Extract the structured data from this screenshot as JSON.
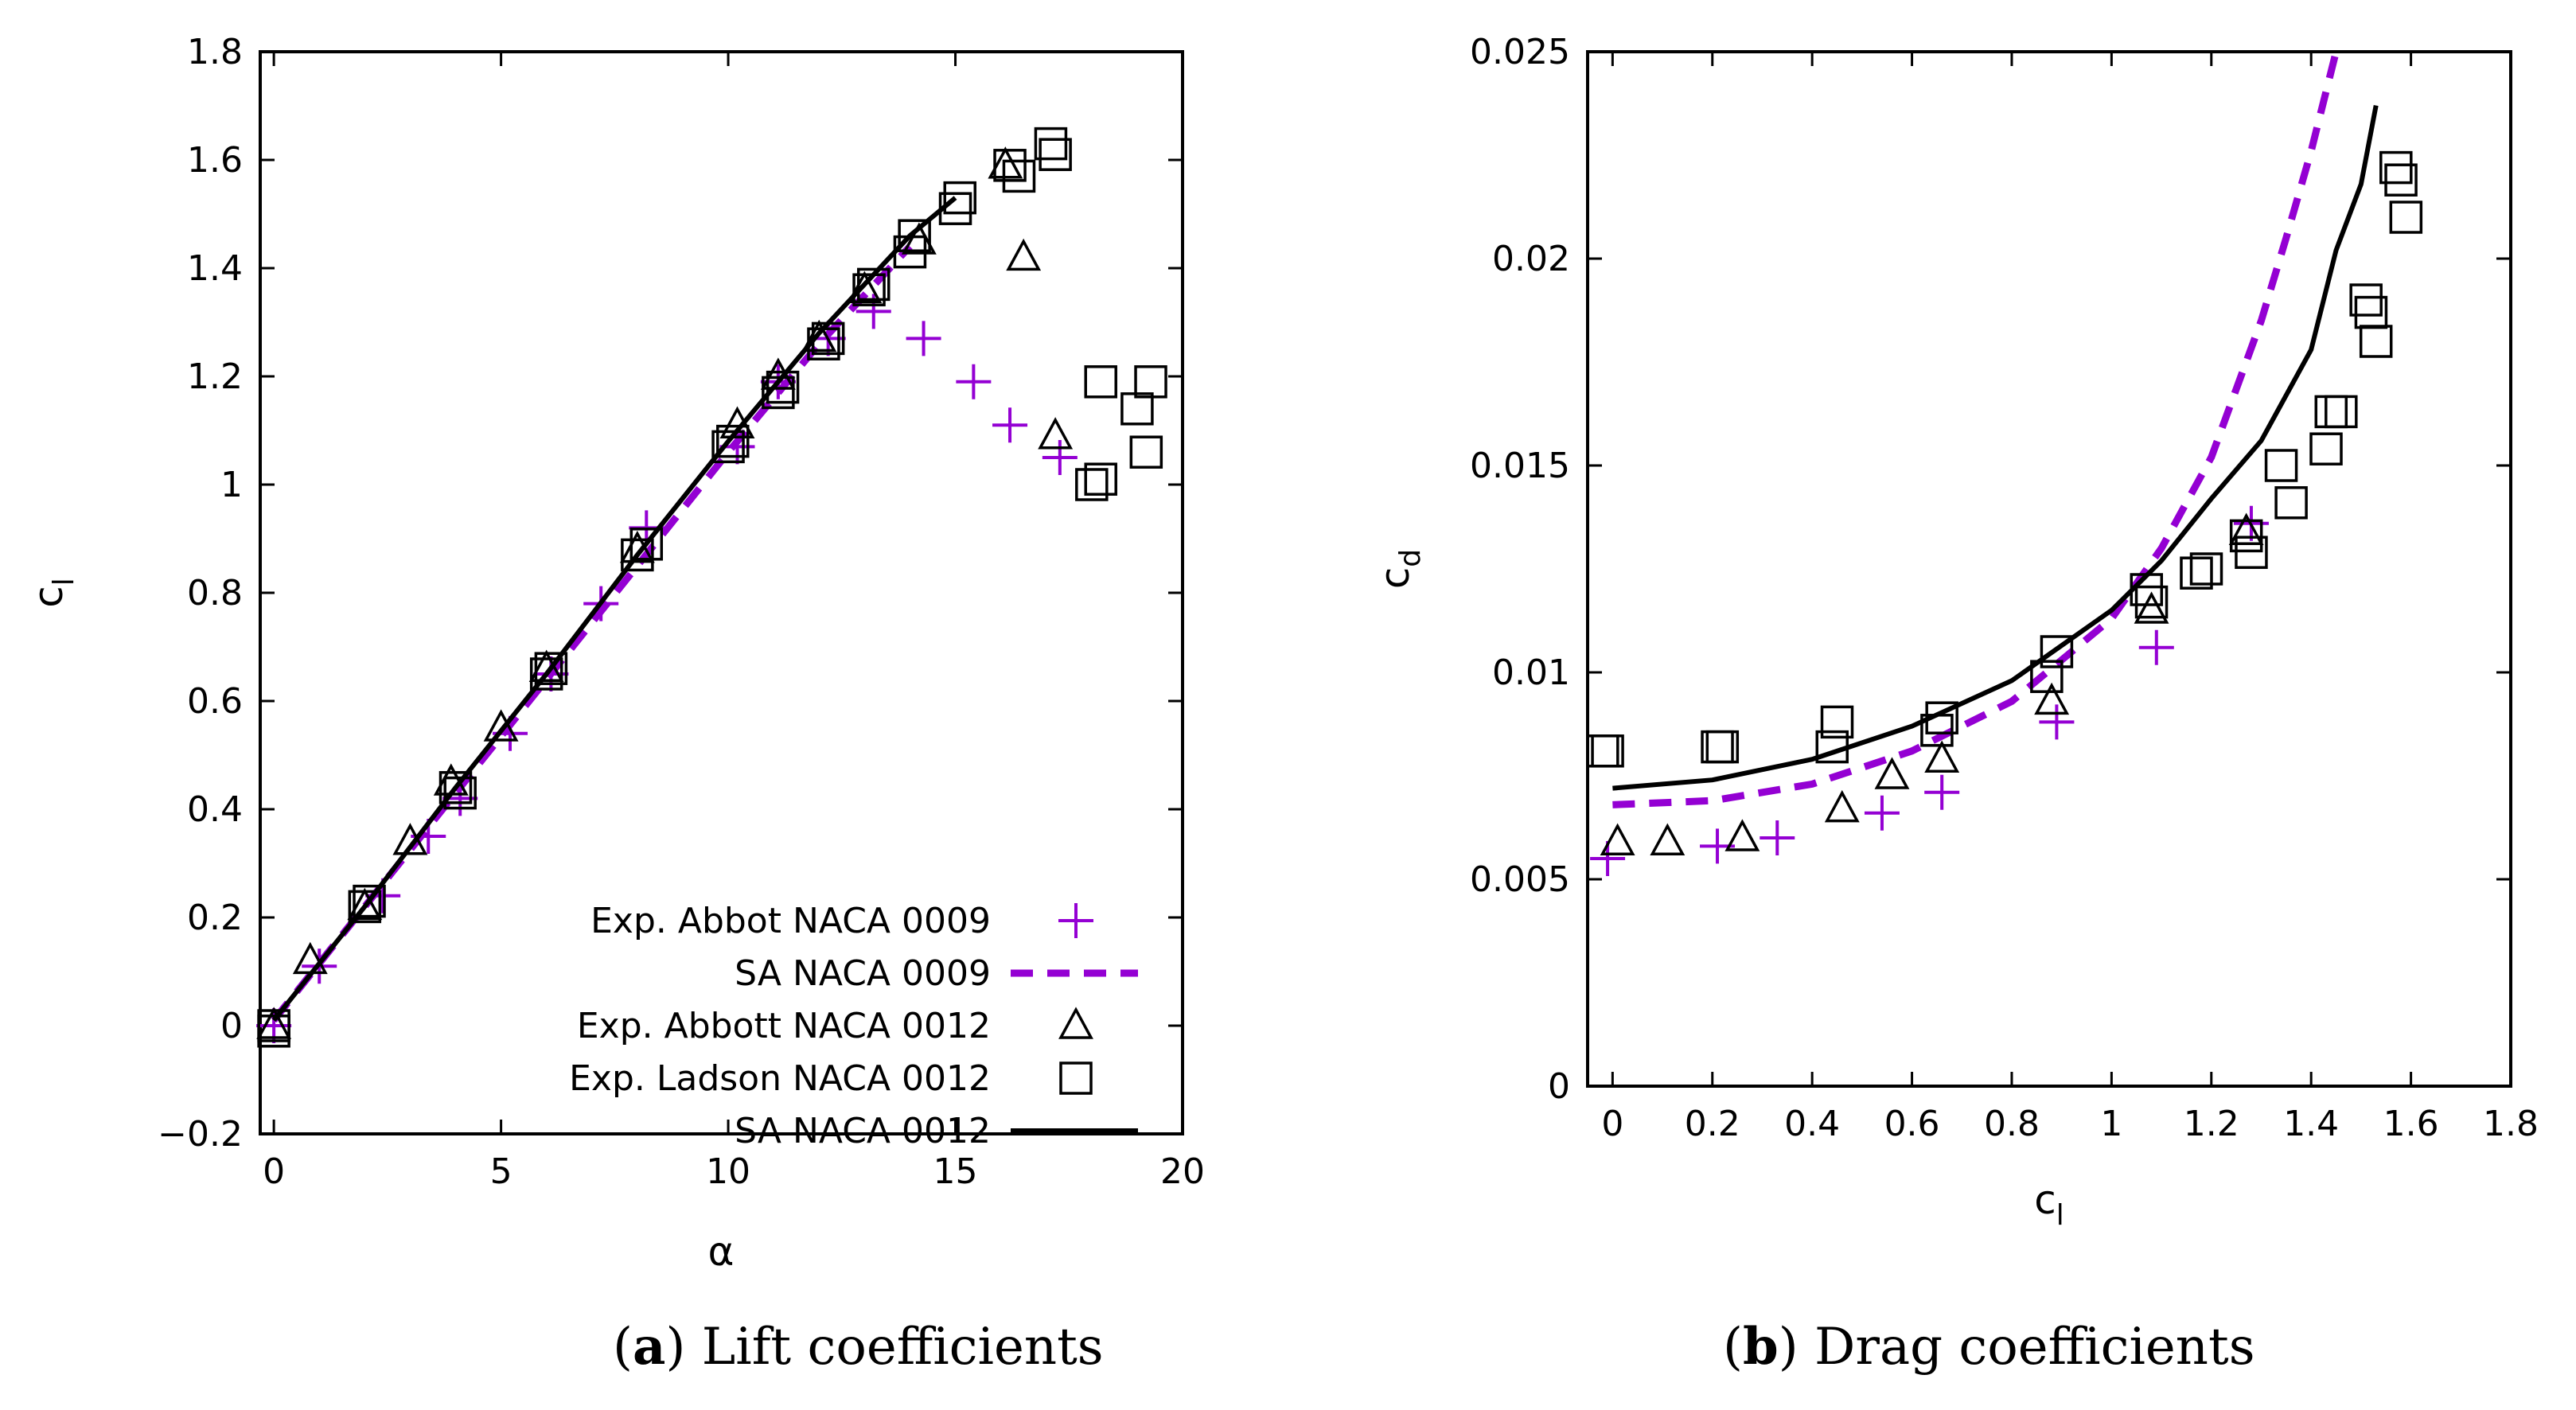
{
  "captions": {
    "a": {
      "label": "a",
      "text": "Lift coefficients"
    },
    "b": {
      "label": "b",
      "text": "Drag coefficients"
    }
  },
  "colors": {
    "purple": "#9400D3",
    "black": "#000000"
  },
  "chart_data": [
    {
      "id": "lift",
      "type": "scatter",
      "title": "",
      "xlabel": "α",
      "ylabel": "c",
      "ylabel_sub": "l",
      "xlim": [
        -0.3,
        20
      ],
      "ylim": [
        -0.2,
        1.8
      ],
      "xticks": [
        "0",
        "5",
        "10",
        "15",
        "20"
      ],
      "xtick_values": [
        0,
        5,
        10,
        15,
        20
      ],
      "yticks": [
        "−0.2",
        "0",
        "0.2",
        "0.4",
        "0.6",
        "0.8",
        "1",
        "1.2",
        "1.4",
        "1.6",
        "1.8"
      ],
      "ytick_values": [
        -0.2,
        0,
        0.2,
        0.4,
        0.6,
        0.8,
        1,
        1.2,
        1.4,
        1.6,
        1.8
      ],
      "legend_position": "bottom-right",
      "series": [
        {
          "name": "Exp. Abbot NACA 0009",
          "marker": "plus",
          "color": "#9400D3",
          "points": [
            [
              0,
              0
            ],
            [
              1,
              0.11
            ],
            [
              2.4,
              0.24
            ],
            [
              3.4,
              0.35
            ],
            [
              4.1,
              0.42
            ],
            [
              5.2,
              0.54
            ],
            [
              6.1,
              0.65
            ],
            [
              7.2,
              0.78
            ],
            [
              8.2,
              0.92
            ],
            [
              10.2,
              1.07
            ],
            [
              11.1,
              1.19
            ],
            [
              12.2,
              1.27
            ],
            [
              13.2,
              1.32
            ],
            [
              14.3,
              1.27
            ],
            [
              15.4,
              1.19
            ],
            [
              16.2,
              1.11
            ],
            [
              17.3,
              1.05
            ]
          ]
        },
        {
          "name": "SA NACA 0009",
          "line": "dashed",
          "color": "#9400D3",
          "points": [
            [
              0,
              0.01
            ],
            [
              2,
              0.22
            ],
            [
              4,
              0.43
            ],
            [
              6,
              0.64
            ],
            [
              8,
              0.85
            ],
            [
              10,
              1.06
            ],
            [
              12,
              1.26
            ],
            [
              14,
              1.44
            ]
          ]
        },
        {
          "name": "Exp. Abbott NACA 0012",
          "marker": "triangle",
          "color": "#000000",
          "points": [
            [
              0,
              0
            ],
            [
              0.8,
              0.12
            ],
            [
              2,
              0.22
            ],
            [
              3,
              0.34
            ],
            [
              3.9,
              0.45
            ],
            [
              5,
              0.55
            ],
            [
              6,
              0.66
            ],
            [
              8,
              0.88
            ],
            [
              10.2,
              1.11
            ],
            [
              11.1,
              1.2
            ],
            [
              12,
              1.27
            ],
            [
              13,
              1.36
            ],
            [
              14.2,
              1.45
            ],
            [
              16.1,
              1.59
            ],
            [
              16.5,
              1.42
            ],
            [
              17.2,
              1.09
            ]
          ]
        },
        {
          "name": "Exp. Ladson NACA 0012",
          "marker": "square",
          "color": "#000000",
          "points": [
            [
              0,
              0.0
            ],
            [
              0,
              -0.01
            ],
            [
              2,
              0.22
            ],
            [
              2.1,
              0.23
            ],
            [
              4,
              0.44
            ],
            [
              4.1,
              0.43
            ],
            [
              6,
              0.65
            ],
            [
              6.1,
              0.66
            ],
            [
              8,
              0.87
            ],
            [
              8.2,
              0.89
            ],
            [
              10,
              1.07
            ],
            [
              10.1,
              1.08
            ],
            [
              11.1,
              1.17
            ],
            [
              11.2,
              1.18
            ],
            [
              12.1,
              1.26
            ],
            [
              12.2,
              1.27
            ],
            [
              13.1,
              1.36
            ],
            [
              13.2,
              1.37
            ],
            [
              14,
              1.43
            ],
            [
              14.1,
              1.46
            ],
            [
              15,
              1.51
            ],
            [
              15.1,
              1.53
            ],
            [
              16.2,
              1.59
            ],
            [
              16.4,
              1.57
            ],
            [
              17.1,
              1.63
            ],
            [
              17.2,
              1.61
            ],
            [
              18,
              1.0
            ],
            [
              18.2,
              1.01
            ],
            [
              18.2,
              1.19
            ],
            [
              19,
              1.14
            ],
            [
              19.2,
              1.06
            ],
            [
              19.3,
              1.19
            ]
          ]
        },
        {
          "name": "SA NACA 0012",
          "line": "solid",
          "color": "#000000",
          "points": [
            [
              0,
              0.01
            ],
            [
              2,
              0.22
            ],
            [
              4,
              0.44
            ],
            [
              6,
              0.65
            ],
            [
              8,
              0.87
            ],
            [
              10,
              1.08
            ],
            [
              12,
              1.28
            ],
            [
              14,
              1.46
            ],
            [
              15,
              1.53
            ]
          ]
        }
      ]
    },
    {
      "id": "drag",
      "type": "scatter",
      "title": "",
      "xlabel": "c",
      "xlabel_sub": "l",
      "ylabel": "c",
      "ylabel_sub": "d",
      "xlim": [
        -0.05,
        1.8
      ],
      "ylim": [
        0,
        0.025
      ],
      "xticks": [
        "0",
        "0.2",
        "0.4",
        "0.6",
        "0.8",
        "1",
        "1.2",
        "1.4",
        "1.6",
        "1.8"
      ],
      "xtick_values": [
        0,
        0.2,
        0.4,
        0.6,
        0.8,
        1,
        1.2,
        1.4,
        1.6,
        1.8
      ],
      "yticks": [
        "0",
        "0.005",
        "0.01",
        "0.015",
        "0.02",
        "0.025"
      ],
      "ytick_values": [
        0,
        0.005,
        0.01,
        0.015,
        0.02,
        0.025
      ],
      "series": [
        {
          "name": "Exp. Abbot NACA 0009",
          "marker": "plus",
          "color": "#9400D3",
          "points": [
            [
              -0.01,
              0.0055
            ],
            [
              0.21,
              0.0058
            ],
            [
              0.33,
              0.006
            ],
            [
              0.54,
              0.0066
            ],
            [
              0.66,
              0.0071
            ],
            [
              0.89,
              0.0088
            ],
            [
              1.09,
              0.0106
            ],
            [
              1.28,
              0.0136
            ]
          ]
        },
        {
          "name": "SA NACA 0009",
          "line": "dashed",
          "color": "#9400D3",
          "points": [
            [
              0,
              0.0068
            ],
            [
              0.2,
              0.0069
            ],
            [
              0.4,
              0.0073
            ],
            [
              0.6,
              0.0081
            ],
            [
              0.8,
              0.0093
            ],
            [
              1.0,
              0.0113
            ],
            [
              1.1,
              0.013
            ],
            [
              1.2,
              0.0152
            ],
            [
              1.3,
              0.0185
            ],
            [
              1.35,
              0.0205
            ],
            [
              1.4,
              0.0226
            ],
            [
              1.45,
              0.025
            ]
          ]
        },
        {
          "name": "Exp. Abbott NACA 0012",
          "marker": "triangle",
          "color": "#000000",
          "points": [
            [
              0.01,
              0.0059
            ],
            [
              0.11,
              0.0059
            ],
            [
              0.26,
              0.006
            ],
            [
              0.46,
              0.0067
            ],
            [
              0.56,
              0.0075
            ],
            [
              0.66,
              0.0079
            ],
            [
              0.88,
              0.0093
            ],
            [
              1.08,
              0.0115
            ],
            [
              1.27,
              0.0134
            ]
          ]
        },
        {
          "name": "Exp. Ladson NACA 0012",
          "marker": "square",
          "color": "#000000",
          "points": [
            [
              -0.02,
              0.0081
            ],
            [
              -0.01,
              0.0081
            ],
            [
              0.21,
              0.0082
            ],
            [
              0.22,
              0.0082
            ],
            [
              0.44,
              0.0082
            ],
            [
              0.45,
              0.0088
            ],
            [
              0.65,
              0.0086
            ],
            [
              0.66,
              0.0089
            ],
            [
              0.87,
              0.0099
            ],
            [
              0.89,
              0.0105
            ],
            [
              1.07,
              0.012
            ],
            [
              1.08,
              0.0117
            ],
            [
              1.17,
              0.0124
            ],
            [
              1.19,
              0.0125
            ],
            [
              1.27,
              0.0133
            ],
            [
              1.28,
              0.0129
            ],
            [
              1.34,
              0.015
            ],
            [
              1.36,
              0.0141
            ],
            [
              1.43,
              0.0154
            ],
            [
              1.44,
              0.0163
            ],
            [
              1.46,
              0.0163
            ],
            [
              1.51,
              0.019
            ],
            [
              1.52,
              0.0187
            ],
            [
              1.53,
              0.018
            ],
            [
              1.57,
              0.0222
            ],
            [
              1.58,
              0.0219
            ],
            [
              1.59,
              0.021
            ]
          ]
        },
        {
          "name": "SA NACA 0012",
          "line": "solid",
          "color": "#000000",
          "points": [
            [
              0,
              0.0072
            ],
            [
              0.2,
              0.0074
            ],
            [
              0.4,
              0.0079
            ],
            [
              0.6,
              0.0087
            ],
            [
              0.8,
              0.0098
            ],
            [
              1.0,
              0.0115
            ],
            [
              1.1,
              0.0127
            ],
            [
              1.2,
              0.0142
            ],
            [
              1.3,
              0.0156
            ],
            [
              1.4,
              0.0178
            ],
            [
              1.45,
              0.0202
            ],
            [
              1.5,
              0.0218
            ],
            [
              1.53,
              0.0237
            ]
          ]
        }
      ]
    }
  ]
}
